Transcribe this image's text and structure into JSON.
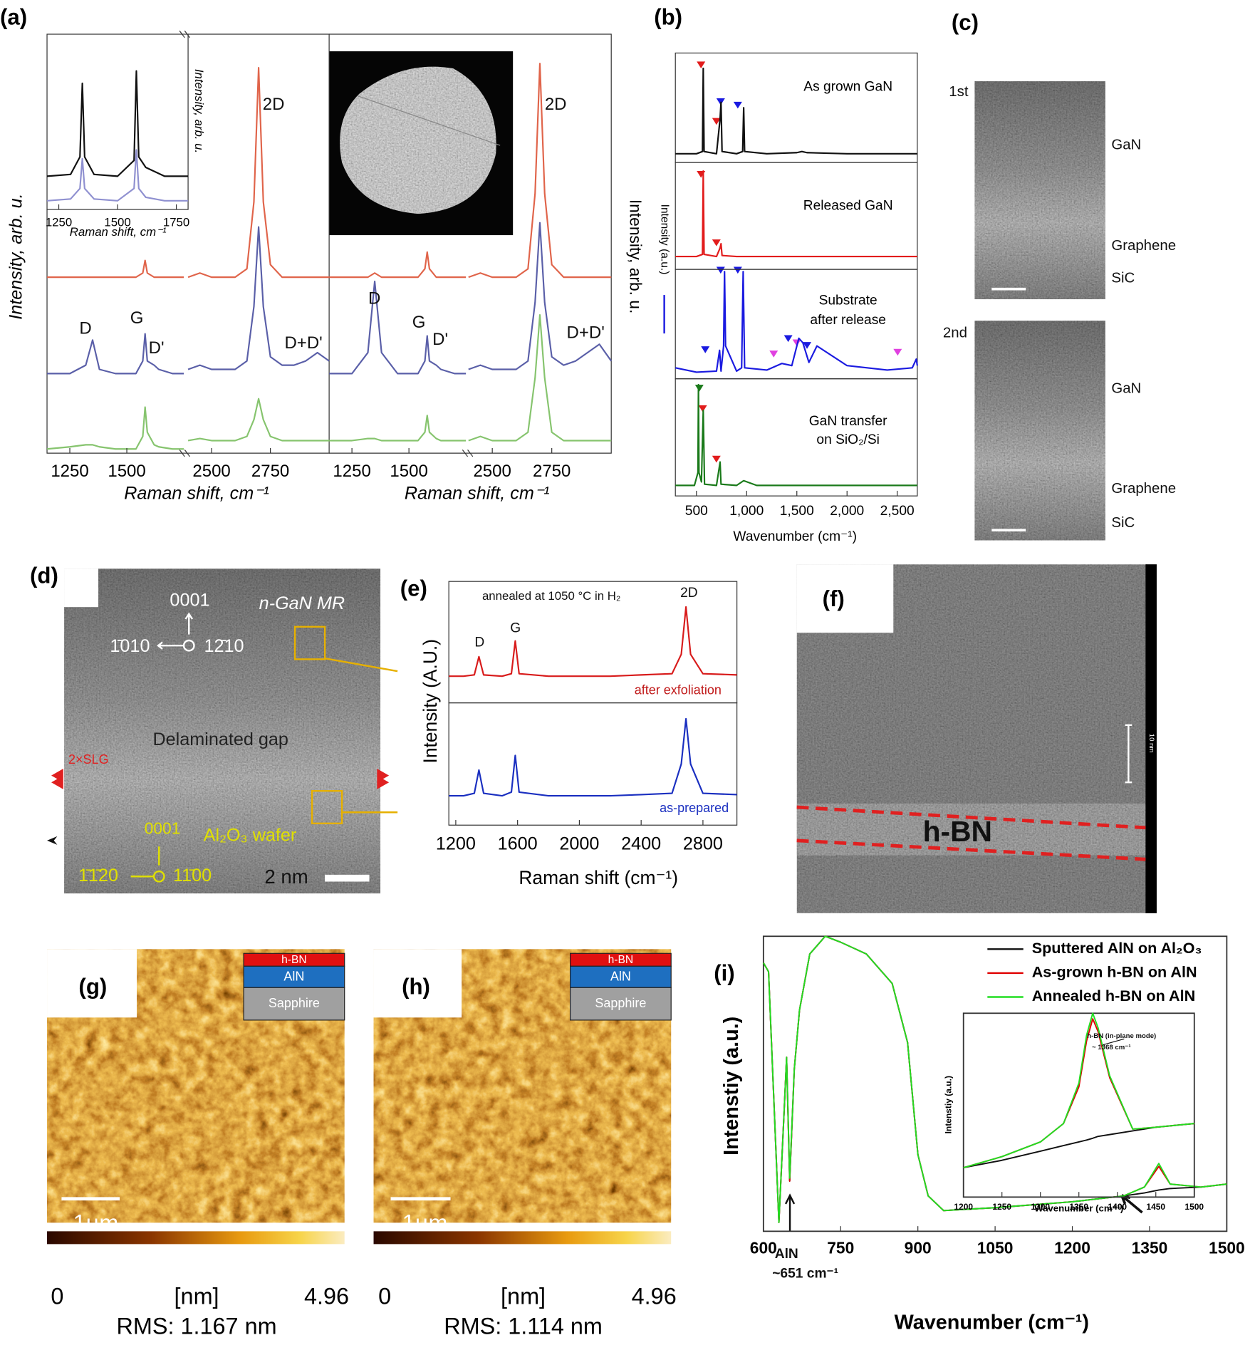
{
  "panel_labels": [
    "(a)",
    "(b)",
    "(c)",
    "(d)",
    "(e)",
    "(f)",
    "(g)",
    "(h)",
    "(i)"
  ],
  "panels": {
    "b": {
      "overlap_label": "Intensity (a.u.)"
    },
    "c": {
      "labels": [
        "1st",
        "GaN",
        "Graphene",
        "SiC",
        "2nd",
        "GaN",
        "Graphene",
        "SiC"
      ]
    },
    "d": {
      "labels": [
        "0001",
        "1̄010",
        "12̄10",
        "n-GaN MR",
        "Delaminated gap",
        "2×SLG",
        "0001",
        "Al₂O₃ wafer",
        "1̄1̄20",
        "11̄00",
        "2 nm"
      ]
    },
    "f": {
      "labels": [
        "h-BN",
        "10 nm"
      ]
    },
    "g": {
      "layers": [
        "h-BN",
        "AlN",
        "Sapphire"
      ],
      "scale": "1µm",
      "colorbar": [
        "0",
        "[nm]",
        "4.96"
      ],
      "rms": "RMS: 1.167 nm"
    },
    "h": {
      "layers": [
        "h-BN",
        "AlN",
        "Sapphire"
      ],
      "scale": "1µm",
      "colorbar": [
        "0",
        "[nm]",
        "4.96"
      ],
      "rms": "RMS: 1.114 nm"
    }
  },
  "chart_data": [
    {
      "type": "line",
      "xlabel": "Raman shift, cm⁻¹",
      "ylabel": "Intensity, arb. u.",
      "xlim": [
        1200,
        1800
      ],
      "ylim": [
        0,
        100
      ],
      "xticks": [
        1250,
        1500,
        1750
      ],
      "x": [
        1200,
        1300,
        1340,
        1350,
        1360,
        1400,
        1500,
        1570,
        1580,
        1590,
        1620,
        1700,
        1800
      ],
      "series": [
        {
          "color": "#111111",
          "values": [
            19,
            20,
            30,
            72,
            30,
            20,
            19,
            28,
            79,
            30,
            24,
            19,
            19
          ]
        },
        {
          "color": "#8f90d0",
          "values": [
            5,
            6,
            12,
            29,
            12,
            6,
            5,
            12,
            34,
            12,
            7,
            5,
            5
          ]
        }
      ]
    },
    {
      "type": "line",
      "xlabel": "Raman shift, cm⁻¹",
      "ylabel": "Intensity, arb. u.",
      "xlim": [
        1150,
        1750
      ],
      "ylim": [
        0,
        100
      ],
      "xticks": [
        1250,
        1500
      ],
      "annotations": [
        "D",
        "G",
        "D'"
      ],
      "x": [
        1150,
        1250,
        1320,
        1350,
        1380,
        1450,
        1540,
        1570,
        1580,
        1590,
        1620,
        1640,
        1700,
        1750
      ],
      "series": [
        {
          "color": "#e0644a",
          "values": [
            42,
            42,
            42,
            42,
            42,
            42,
            42,
            43,
            46,
            43,
            42,
            42,
            42,
            42
          ]
        },
        {
          "color": "#5a5fa8",
          "values": [
            19,
            19,
            21,
            27,
            20,
            19,
            19,
            22,
            28.5,
            22,
            21,
            20,
            19,
            19
          ]
        },
        {
          "color": "#86c46e",
          "values": [
            1,
            1.5,
            2,
            2,
            1.5,
            1,
            1,
            4,
            11,
            5,
            2,
            1.5,
            1,
            1
          ]
        }
      ]
    },
    {
      "type": "line",
      "xlim": [
        2400,
        3000
      ],
      "ylim": [
        0,
        100
      ],
      "xticks": [
        2500,
        2750
      ],
      "annotations": [
        "2D",
        "D+D'"
      ],
      "x": [
        2400,
        2450,
        2500,
        2600,
        2650,
        2680,
        2700,
        2720,
        2750,
        2800,
        2850,
        2900,
        2950,
        3000
      ],
      "series": [
        {
          "color": "#e0644a",
          "values": [
            42,
            43,
            42,
            42,
            44,
            60,
            92,
            60,
            45,
            42,
            42,
            42,
            42,
            42
          ]
        },
        {
          "color": "#5a5fa8",
          "values": [
            20,
            21,
            20,
            20,
            22,
            35,
            54,
            35,
            23,
            21,
            21,
            22,
            24,
            22
          ]
        },
        {
          "color": "#86c46e",
          "values": [
            3,
            3.5,
            3,
            3,
            4,
            8,
            13,
            8,
            4,
            3,
            3,
            3,
            3,
            3
          ]
        }
      ]
    },
    {
      "type": "line",
      "xlabel": "Raman shift, cm⁻¹",
      "xlim": [
        1150,
        1750
      ],
      "ylim": [
        0,
        100
      ],
      "xticks": [
        1250,
        1500
      ],
      "annotations": [
        "D",
        "G",
        "D'"
      ],
      "x": [
        1150,
        1250,
        1320,
        1350,
        1380,
        1450,
        1540,
        1570,
        1580,
        1590,
        1620,
        1640,
        1700,
        1750
      ],
      "series": [
        {
          "color": "#e0644a",
          "values": [
            42,
            42,
            42,
            43,
            42,
            42,
            42,
            44,
            48,
            44,
            42,
            42,
            42,
            42
          ]
        },
        {
          "color": "#5a5fa8",
          "values": [
            19,
            19,
            24,
            41,
            24,
            19,
            19,
            22,
            28,
            22,
            21,
            20,
            19,
            19
          ]
        },
        {
          "color": "#86c46e",
          "values": [
            3,
            3,
            3.5,
            3.5,
            3,
            3,
            3,
            5,
            9,
            5,
            3.5,
            3,
            3,
            3
          ]
        }
      ]
    },
    {
      "type": "line",
      "xlim": [
        2400,
        3000
      ],
      "ylim": [
        0,
        100
      ],
      "xticks": [
        2500,
        2750
      ],
      "annotations": [
        "2D",
        "D+D'"
      ],
      "x": [
        2400,
        2450,
        2500,
        2600,
        2650,
        2680,
        2700,
        2720,
        2750,
        2800,
        2850,
        2900,
        2950,
        3000
      ],
      "series": [
        {
          "color": "#e0644a",
          "values": [
            42,
            43,
            42,
            42,
            44,
            62,
            93,
            62,
            45,
            42,
            42,
            42,
            42,
            42
          ]
        },
        {
          "color": "#5a5fa8",
          "values": [
            20,
            21,
            20,
            20,
            22,
            36,
            55,
            36,
            23,
            21,
            22,
            24,
            26,
            22
          ]
        },
        {
          "color": "#86c46e",
          "values": [
            3,
            4,
            3,
            3,
            5,
            18,
            33,
            18,
            5,
            3,
            3,
            3,
            3,
            3
          ]
        }
      ]
    },
    {
      "type": "line",
      "title": [
        "As grown GaN"
      ],
      "ylabel": "Intensity, arb. u.",
      "xlim": [
        290,
        2700
      ],
      "ylim": [
        0,
        100
      ],
      "x": [
        290,
        500,
        560,
        568,
        576,
        700,
        735,
        745,
        755,
        900,
        960,
        970,
        980,
        1200,
        1500,
        1550,
        1600,
        2000,
        2400,
        2700
      ],
      "series": [
        {
          "color": "#111111",
          "values": [
            8,
            8,
            10,
            86,
            10,
            8,
            40,
            55,
            10,
            8,
            10,
            50,
            10,
            8,
            9,
            10,
            9,
            8,
            8,
            8
          ]
        }
      ]
    },
    {
      "type": "line",
      "title": [
        "Released GaN"
      ],
      "xlim": [
        290,
        2700
      ],
      "ylim": [
        0,
        100
      ],
      "x": [
        290,
        500,
        560,
        568,
        576,
        700,
        735,
        745,
        755,
        900,
        960,
        970,
        980,
        1200,
        1500,
        1550,
        1600,
        2000,
        2400,
        2700
      ],
      "series": [
        {
          "color": "#e21c1c",
          "values": [
            12,
            12,
            14,
            92,
            14,
            12,
            20,
            24,
            13,
            12,
            12,
            12,
            12,
            12,
            12,
            12,
            12,
            12,
            12,
            12
          ]
        }
      ]
    },
    {
      "type": "line",
      "title": [
        "Substrate",
        "after release"
      ],
      "xlim": [
        290,
        2700
      ],
      "ylim": [
        0,
        100
      ],
      "x": [
        290,
        500,
        700,
        730,
        745,
        770,
        780,
        790,
        900,
        950,
        965,
        980,
        1200,
        1350,
        1450,
        1520,
        1560,
        1620,
        1700,
        2000,
        2400,
        2650,
        2690,
        2700
      ],
      "series": [
        {
          "color": "#1a1ae0",
          "values": [
            10,
            6,
            7,
            26,
            7,
            30,
            98,
            30,
            7,
            10,
            98,
            10,
            8,
            14,
            12,
            37,
            33,
            15,
            30,
            12,
            8,
            10,
            18,
            12
          ]
        }
      ]
    },
    {
      "type": "line",
      "title": [
        "GaN transfer",
        "on SiO₂/Si"
      ],
      "xlabel": "Wavenumber (cm⁻¹)",
      "xlim": [
        290,
        2700
      ],
      "ylim": [
        0,
        100
      ],
      "xticks": [
        500,
        {
          "value": 1000,
          "label": "1,000"
        },
        {
          "value": 1500,
          "label": "1,500"
        },
        {
          "value": 2000,
          "label": "2,000"
        },
        {
          "value": 2500,
          "label": "2,500"
        }
      ],
      "x": [
        290,
        480,
        515,
        520,
        525,
        550,
        568,
        580,
        700,
        735,
        745,
        900,
        970,
        1100,
        1500,
        2000,
        2700
      ],
      "series": [
        {
          "color": "#1a7a1a",
          "values": [
            9,
            9,
            20,
            95,
            20,
            12,
            73,
            10,
            9,
            29,
            10,
            9,
            13,
            9,
            9,
            9,
            9
          ]
        }
      ]
    },
    {
      "type": "line",
      "ylabel": "Intensity (A.U.)",
      "xlim": [
        1155,
        3020
      ],
      "ylim": [
        0,
        100
      ],
      "annotations": [
        "annealed at 1050 °C in H₂",
        "D",
        "G",
        "2D",
        "after exfoliation"
      ],
      "x": [
        1155,
        1250,
        1320,
        1350,
        1380,
        1500,
        1560,
        1585,
        1610,
        1800,
        2000,
        2200,
        2400,
        2600,
        2660,
        2690,
        2720,
        2800,
        3020
      ],
      "series": [
        {
          "color": "#d81b1b",
          "values": [
            22,
            22,
            23,
            38,
            23,
            22,
            24,
            51,
            24,
            22,
            22,
            22,
            23,
            24,
            40,
            79,
            40,
            24,
            23
          ]
        }
      ]
    },
    {
      "type": "line",
      "xlabel": "Raman shift (cm⁻¹)",
      "xlim": [
        1155,
        3020
      ],
      "ylim": [
        0,
        100
      ],
      "xticks": [
        1200,
        1600,
        2000,
        2400,
        2800
      ],
      "annotations": [
        "as-prepared"
      ],
      "x": [
        1155,
        1250,
        1320,
        1350,
        1380,
        1500,
        1560,
        1585,
        1610,
        1800,
        2000,
        2200,
        2400,
        2600,
        2660,
        2690,
        2720,
        2800,
        3020
      ],
      "series": [
        {
          "color": "#1a2fc0",
          "values": [
            24,
            24,
            26,
            45,
            26,
            24,
            27,
            57,
            27,
            24,
            24,
            24,
            25,
            26,
            50,
            87,
            50,
            26,
            25
          ]
        }
      ]
    },
    {
      "type": "line",
      "xlabel": "Wavenumber (cm⁻¹)",
      "ylabel": "Intenstiy (a.u.)",
      "xlim": [
        600,
        1500
      ],
      "ylim": [
        0,
        100
      ],
      "xticks": [
        600,
        750,
        900,
        1050,
        1200,
        1350,
        1500
      ],
      "annotations": [
        "AlN",
        "~651 cm⁻¹"
      ],
      "x": [
        600,
        610,
        630,
        640,
        645,
        651,
        660,
        670,
        690,
        720,
        750,
        800,
        850,
        880,
        900,
        920,
        950,
        1050,
        1200,
        1300,
        1340,
        1368,
        1390,
        1450,
        1500
      ],
      "series": [
        {
          "name": "Sputtered AlN on Al₂O₃",
          "color": "#111111",
          "values": [
            91,
            88,
            3,
            40,
            59,
            17,
            55,
            75,
            94,
            100,
            98,
            94,
            84,
            64,
            26,
            12,
            7,
            8,
            10,
            12,
            13,
            14,
            14.5,
            15,
            16
          ]
        },
        {
          "name": "As-grown h-BN on AlN",
          "color": "#e00000",
          "values": [
            91,
            88,
            3,
            40,
            59,
            17,
            55,
            75,
            94,
            100,
            98,
            94,
            84,
            64,
            26,
            12,
            7,
            8,
            10,
            12,
            15,
            22,
            16,
            15,
            16
          ]
        },
        {
          "name": "Annealed h-BN on AlN",
          "color": "#22dd22",
          "values": [
            91,
            88,
            3,
            40,
            59,
            18,
            55,
            75,
            94,
            100,
            98,
            94,
            84,
            64,
            26,
            12,
            7,
            8,
            10,
            12,
            15,
            23,
            16,
            15,
            16
          ]
        }
      ]
    },
    {
      "type": "line",
      "xlabel": "Wavenumber (cm⁻¹)",
      "ylabel": "Intenstiy (a.u.)",
      "xlim": [
        1200,
        1500
      ],
      "ylim": [
        0,
        100
      ],
      "xticks": [
        1200,
        1250,
        1300,
        1350,
        1400,
        1450,
        1500
      ],
      "annotations": [
        "h-BN (in-plane mode)",
        "~ 1368 cm⁻¹"
      ],
      "x": [
        1200,
        1250,
        1300,
        1330,
        1350,
        1360,
        1368,
        1375,
        1390,
        1420,
        1450,
        1500
      ],
      "series": [
        {
          "color": "#111111",
          "values": [
            16,
            20,
            25,
            28,
            30,
            31,
            32,
            33,
            34,
            36,
            38,
            40
          ]
        },
        {
          "color": "#e00000",
          "values": [
            16,
            22,
            30,
            40,
            60,
            85,
            97,
            90,
            65,
            37,
            38,
            40
          ]
        },
        {
          "color": "#22dd22",
          "values": [
            16,
            22,
            30,
            40,
            62,
            88,
            100,
            92,
            66,
            37,
            38,
            40
          ]
        }
      ]
    }
  ]
}
